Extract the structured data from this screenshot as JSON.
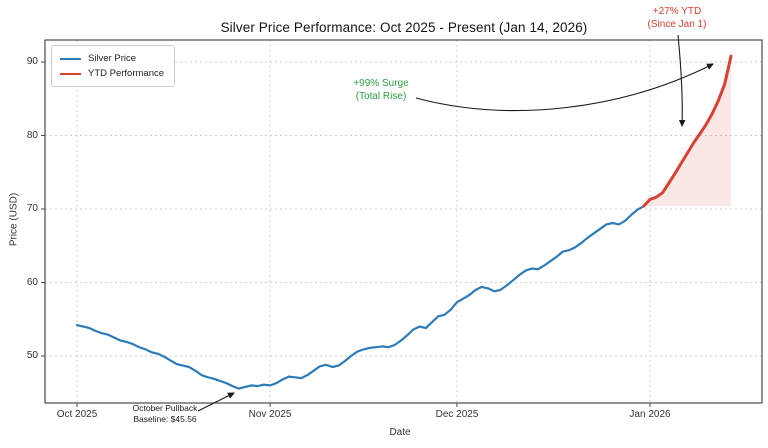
{
  "chart_data": {
    "type": "line",
    "title": "Silver Price Performance: Oct 2025 - Present (Jan 14, 2026)",
    "xlabel": "Date",
    "ylabel": "Price (USD)",
    "x_tick_labels": [
      "Oct 2025",
      "Nov 2025",
      "Dec 2025",
      "Jan 2026"
    ],
    "x_tick_day_offsets": [
      0,
      31,
      61,
      92
    ],
    "y_ticks": [
      90,
      80,
      70,
      60,
      50
    ],
    "ylim": [
      43.5,
      93.0
    ],
    "start_date_label": "Oct 2025",
    "end_date_label": "Jan 14, 2026",
    "grid": true,
    "legend_position": "upper left",
    "series": [
      {
        "name": "Silver Price",
        "color": "#2d7cb8",
        "values": [
          54.2,
          54.0,
          53.8,
          53.4,
          53.1,
          52.9,
          52.5,
          52.1,
          51.9,
          51.6,
          51.2,
          50.9,
          50.5,
          50.3,
          49.9,
          49.4,
          48.9,
          48.7,
          48.5,
          48.0,
          47.4,
          47.1,
          46.9,
          46.6,
          46.3,
          45.9,
          45.56,
          45.8,
          46.0,
          45.9,
          46.1,
          46.0,
          46.3,
          46.8,
          47.2,
          47.1,
          47.0,
          47.4,
          48.0,
          48.6,
          48.8,
          48.5,
          48.7,
          49.3,
          50.0,
          50.6,
          50.9,
          51.1,
          51.2,
          51.3,
          51.2,
          51.5,
          52.1,
          52.8,
          53.6,
          54.0,
          53.8,
          54.6,
          55.4,
          55.6,
          56.3,
          57.3,
          57.8,
          58.3,
          59.0,
          59.4,
          59.2,
          58.8,
          59.0,
          59.6,
          60.3,
          61.0,
          61.6,
          61.9,
          61.8,
          62.3,
          62.9,
          63.5,
          64.2,
          64.4,
          64.8,
          65.4,
          66.1,
          66.7,
          67.3,
          67.9,
          68.1,
          67.9,
          68.4,
          69.2,
          69.9,
          70.4,
          71.3,
          71.6,
          72.2,
          73.5,
          74.8,
          76.2,
          77.6,
          79.0,
          80.2,
          81.5,
          83.0,
          84.8,
          87.0,
          90.8
        ]
      },
      {
        "name": "YTD Performance",
        "color": "#d8412f",
        "start_index": 91,
        "fill_color": "#d8412f",
        "fill_opacity": 0.12
      }
    ],
    "annotations": [
      {
        "text_lines": [
          "+99% Surge",
          "(Total Rise)"
        ],
        "color": "#2f9e41"
      },
      {
        "text_lines": [
          "+27% YTD",
          "(Since Jan 1)"
        ],
        "color": "#d8412f"
      },
      {
        "text_lines": [
          "October Pullback",
          "Baseline: $45.56"
        ],
        "color": "#1a1a1a"
      }
    ],
    "key_values": {
      "october_low": 45.56,
      "ytd_start_price": 71.3,
      "peak_price": 90.8,
      "total_rise_pct": "+99%",
      "ytd_pct": "+27%"
    },
    "colors": {
      "grid": "#cdcdcd",
      "frame": "#4a4a4a",
      "arrow": "#1a1a1a"
    }
  }
}
